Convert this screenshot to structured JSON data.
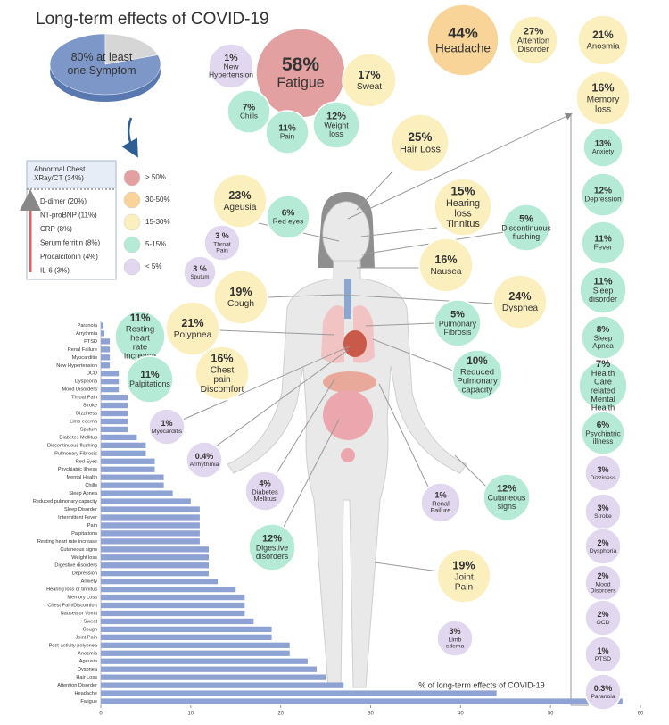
{
  "title": "Long-term effects of COVID-19",
  "chart_data": [
    {
      "type": "pie",
      "label": "80% at least one Symptom",
      "values": [
        80,
        20
      ],
      "colors": [
        "#7d97c9",
        "#d6d6d6"
      ]
    },
    {
      "type": "hbar",
      "xlabel": "% of long-term effects of COVID-19",
      "color": "#8ea2d3",
      "categories": [
        "Paranoia",
        "Arrythmia",
        "PTSD",
        "Renal Failure",
        "Myocarditis",
        "New Hypertension",
        "OCD",
        "Dysphoria",
        "Mood Disorders",
        "Throat Pain",
        "Stroke",
        "Dizziness",
        "Limb edema",
        "Sputum",
        "Diabetes Mellitus",
        "Discontinuous flushing",
        "Pulmonary Fibrosis",
        "Red Eyes",
        "Psychiatric illness",
        "Mental Health",
        "Chills",
        "Sleep Apnea",
        "Reduced pulmonary capacity",
        "Sleep Disorder",
        "Intermittent Fever",
        "Pain",
        "Palpitations",
        "Resting heart rate increase",
        "Cutaneous signs",
        "Weight loss",
        "Digestive disorders",
        "Depression",
        "Anxiety",
        "Hearing loss or tinnitus",
        "Memory Loss",
        "Chest Pain/Discomfort",
        "Nausea or Vomit",
        "Sweat",
        "Cough",
        "Joint Pain",
        "Post-activity polypnea",
        "Anosmia",
        "Ageusia",
        "Dyspnea",
        "Hair Loss",
        "Attention Disorder",
        "Headache",
        "Fatigue"
      ],
      "values": [
        0.3,
        0.4,
        1,
        1,
        1,
        1,
        2,
        2,
        2,
        3,
        3,
        3,
        3,
        3,
        4,
        5,
        5,
        6,
        6,
        7,
        7,
        8,
        10,
        11,
        11,
        11,
        11,
        11,
        12,
        12,
        12,
        12,
        13,
        15,
        16,
        16,
        16,
        17,
        19,
        19,
        21,
        21,
        23,
        24,
        25,
        27,
        44,
        58
      ],
      "xlim": [
        0,
        60
      ],
      "xticks": [
        0,
        10,
        20,
        30,
        40,
        50,
        60
      ]
    }
  ],
  "legend": [
    {
      "label": "> 50%",
      "color": "#e3a0a0"
    },
    {
      "label": "30-50%",
      "color": "#f8d498"
    },
    {
      "label": "15-30%",
      "color": "#fcefbe"
    },
    {
      "label": "5-15%",
      "color": "#b5ebd6"
    },
    {
      "label": "< 5%",
      "color": "#e1d7ef"
    }
  ],
  "labs": {
    "top": "Abnormal Chest XRay/CT (34%)",
    "items": [
      "D-dimer (20%)",
      "NT-proBNP (11%)",
      "CRP (8%)",
      "Serum ferritin (8%)",
      "Procalcitonin (4%)",
      "IL-6 (3%)"
    ]
  },
  "bubbles": [
    {
      "percent": "44%",
      "label": "Headache",
      "color": "#f8d498"
    },
    {
      "percent": "27%",
      "label": "Attention Disorder",
      "color": "#fcefbe"
    },
    {
      "percent": "21%",
      "label": "Anosmia",
      "color": "#fcefbe"
    },
    {
      "percent": "16%",
      "label": "Memory loss",
      "color": "#fcefbe"
    },
    {
      "percent": "13%",
      "label": "Anxiety",
      "color": "#b5ebd6"
    },
    {
      "percent": "12%",
      "label": "Depression",
      "color": "#b5ebd6"
    },
    {
      "percent": "11%",
      "label": "Fever",
      "color": "#b5ebd6"
    },
    {
      "percent": "11%",
      "label": "Sleep disorder",
      "color": "#b5ebd6"
    },
    {
      "percent": "8%",
      "label": "Sleep Apnea",
      "color": "#b5ebd6"
    },
    {
      "percent": "7%",
      "label": "Health Care related Mental Health",
      "color": "#b5ebd6"
    },
    {
      "percent": "6%",
      "label": "Psychiatric illness",
      "color": "#b5ebd6"
    },
    {
      "percent": "3%",
      "label": "Dizziness",
      "color": "#e1d7ef"
    },
    {
      "percent": "3%",
      "label": "Stroke",
      "color": "#e1d7ef"
    },
    {
      "percent": "2%",
      "label": "Dysphoria",
      "color": "#e1d7ef"
    },
    {
      "percent": "2%",
      "label": "Mood Disorders",
      "color": "#e1d7ef"
    },
    {
      "percent": "2%",
      "label": "OCD",
      "color": "#e1d7ef"
    },
    {
      "percent": "1%",
      "label": "PTSD",
      "color": "#e1d7ef"
    },
    {
      "percent": "0.3%",
      "label": "Paranoia",
      "color": "#e1d7ef"
    },
    {
      "percent": "58%",
      "label": "Fatigue",
      "color": "#e3a0a0"
    },
    {
      "percent": "1%",
      "label": "New Hypertension",
      "color": "#e1d7ef"
    },
    {
      "percent": "17%",
      "label": "Sweat",
      "color": "#fcefbe"
    },
    {
      "percent": "7%",
      "label": "Chills",
      "color": "#b5ebd6"
    },
    {
      "percent": "11%",
      "label": "Pain",
      "color": "#b5ebd6"
    },
    {
      "percent": "12%",
      "label": "Weight loss",
      "color": "#b5ebd6"
    },
    {
      "percent": "25%",
      "label": "Hair Loss",
      "color": "#fcefbe"
    },
    {
      "percent": "23%",
      "label": "Ageusia",
      "color": "#fcefbe"
    },
    {
      "percent": "6%",
      "label": "Red eyes",
      "color": "#b5ebd6"
    },
    {
      "percent": "15%",
      "label": "Hearing loss Tinnitus",
      "color": "#fcefbe"
    },
    {
      "percent": "5%",
      "label": "Discontinuous flushing",
      "color": "#b5ebd6"
    },
    {
      "percent": "3 %",
      "label": "Throat Pain",
      "color": "#e1d7ef"
    },
    {
      "percent": "3 %",
      "label": "Sputum",
      "color": "#e1d7ef"
    },
    {
      "percent": "16%",
      "label": "Nausea",
      "color": "#fcefbe"
    },
    {
      "percent": "19%",
      "label": "Cough",
      "color": "#fcefbe"
    },
    {
      "percent": "24%",
      "label": "Dyspnea",
      "color": "#fcefbe"
    },
    {
      "percent": "21%",
      "label": "Polypnea",
      "color": "#fcefbe"
    },
    {
      "percent": "5%",
      "label": "Pulmonary Fibrosis",
      "color": "#b5ebd6"
    },
    {
      "percent": "11%",
      "label": "Resting heart rate increase",
      "color": "#b5ebd6"
    },
    {
      "percent": "10%",
      "label": "Reduced Pulmonary capacity",
      "color": "#b5ebd6"
    },
    {
      "percent": "16%",
      "label": "Chest pain Discomfort",
      "color": "#fcefbe"
    },
    {
      "percent": "11%",
      "label": "Palpitations",
      "color": "#b5ebd6"
    },
    {
      "percent": "1%",
      "label": "Myocarditis",
      "color": "#e1d7ef"
    },
    {
      "percent": "0.4%",
      "label": "Arrhythmia",
      "color": "#e1d7ef"
    },
    {
      "percent": "4%",
      "label": "Diabetes Mellitus",
      "color": "#e1d7ef"
    },
    {
      "percent": "1%",
      "label": "Renal Failure",
      "color": "#e1d7ef"
    },
    {
      "percent": "12%",
      "label": "Cutaneous signs",
      "color": "#b5ebd6"
    },
    {
      "percent": "12%",
      "label": "Digestive disorders",
      "color": "#b5ebd6"
    },
    {
      "percent": "19%",
      "label": "Joint Pain",
      "color": "#fcefbe"
    },
    {
      "percent": "3%",
      "label": "Limb edema",
      "color": "#e1d7ef"
    }
  ]
}
